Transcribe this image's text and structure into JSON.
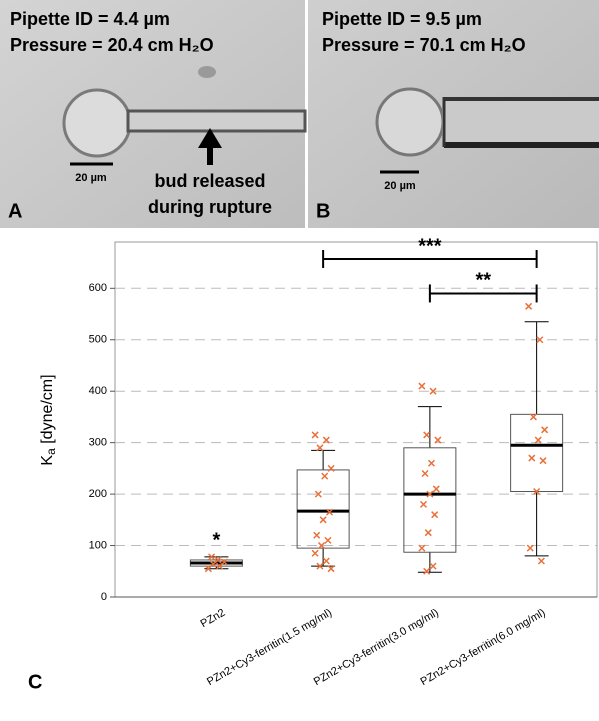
{
  "panels": [
    {
      "letter": "A",
      "lines": [
        "Pipette ID = 4.4 µm",
        "Pressure = 20.4 cm H₂O"
      ],
      "scale_bar": "20 µm",
      "annotation": [
        "bud released",
        "during rupture"
      ]
    },
    {
      "letter": "B",
      "lines": [
        "Pipette ID = 9.5 µm",
        "Pressure = 70.1 cm H₂O"
      ],
      "scale_bar": "20 µm"
    }
  ],
  "chart_data": {
    "type": "box",
    "panel_label": "C",
    "ylabel": {
      "symbol": "K",
      "subscript": "a",
      "unit": " [dyne/cm]"
    },
    "categories": [
      "PZn2",
      "PZn2+Cy3-ferritin(1.5 mg/ml)",
      "PZn2+Cy3-ferritin(3.0 mg/ml)",
      "PZn2+Cy3-ferritin(6.0 mg/ml)"
    ],
    "boxes": [
      {
        "min": 55,
        "q1": 60,
        "median": 66,
        "q3": 72,
        "max": 78,
        "points": [
          55,
          60,
          64,
          68,
          72,
          78
        ]
      },
      {
        "min": 60,
        "q1": 95,
        "median": 167,
        "q3": 247,
        "max": 285,
        "points": [
          315,
          305,
          290,
          250,
          235,
          200,
          165,
          150,
          120,
          110,
          100,
          85,
          70,
          60,
          55
        ]
      },
      {
        "min": 48,
        "q1": 87,
        "median": 200,
        "q3": 290,
        "max": 370,
        "points": [
          410,
          400,
          315,
          305,
          260,
          240,
          210,
          200,
          180,
          160,
          125,
          95,
          60,
          50
        ]
      },
      {
        "min": 80,
        "q1": 205,
        "median": 295,
        "q3": 355,
        "max": 535,
        "points": [
          565,
          500,
          350,
          325,
          305,
          270,
          265,
          205,
          95,
          70
        ]
      }
    ],
    "box_color": "#000000",
    "point_color": "#e8703a",
    "ylim": [
      0,
      690
    ],
    "yticks": [
      0,
      100,
      200,
      300,
      400,
      500,
      600
    ],
    "grid": true,
    "brackets": [
      {
        "text": "***",
        "from": 1,
        "to": 3,
        "y": 657
      },
      {
        "text": "**",
        "from": 2,
        "to": 3,
        "y": 590
      }
    ],
    "marks": [
      {
        "text": "*",
        "category": 0,
        "y": 108
      }
    ]
  }
}
